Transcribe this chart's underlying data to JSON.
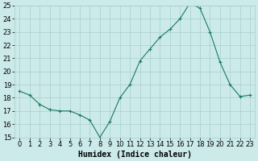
{
  "xlabel": "Humidex (Indice chaleur)",
  "ylabel": "",
  "x": [
    0,
    1,
    2,
    3,
    4,
    5,
    6,
    7,
    8,
    9,
    10,
    11,
    12,
    13,
    14,
    15,
    16,
    17,
    18,
    19,
    20,
    21,
    22,
    23
  ],
  "y": [
    18.5,
    18.2,
    17.5,
    17.1,
    17.0,
    17.0,
    16.7,
    16.3,
    15.0,
    16.2,
    18.0,
    19.0,
    20.8,
    21.7,
    22.6,
    23.2,
    24.0,
    25.2,
    24.8,
    23.0,
    20.7,
    19.0,
    18.1,
    18.2
  ],
  "line_color": "#1a7a5e",
  "marker": "+",
  "marker_size": 3,
  "marker_linewidth": 0.8,
  "bg_color": "#cceaea",
  "grid_color": "#a8cece",
  "ylim": [
    15,
    25
  ],
  "xlim": [
    -0.5,
    23.5
  ],
  "yticks": [
    15,
    16,
    17,
    18,
    19,
    20,
    21,
    22,
    23,
    24,
    25
  ],
  "xticks": [
    0,
    1,
    2,
    3,
    4,
    5,
    6,
    7,
    8,
    9,
    10,
    11,
    12,
    13,
    14,
    15,
    16,
    17,
    18,
    19,
    20,
    21,
    22,
    23
  ],
  "tick_fontsize": 6,
  "xlabel_fontsize": 7,
  "linewidth": 0.8
}
